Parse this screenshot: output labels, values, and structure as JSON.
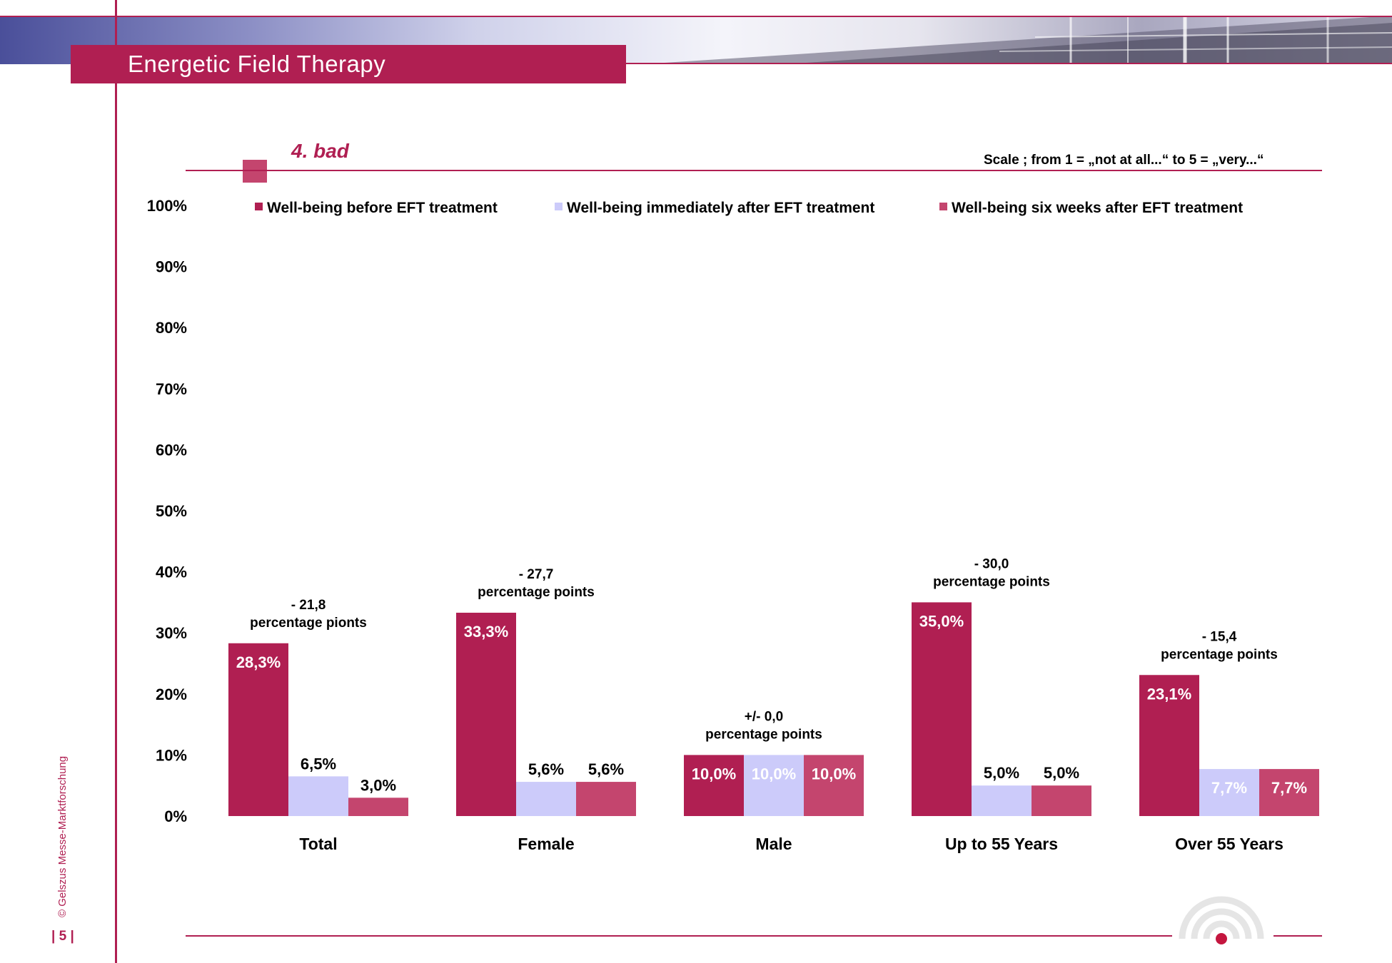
{
  "header": {
    "title": "Energetic Field Therapy"
  },
  "section": {
    "title": "4. bad",
    "scale_note": "Scale ; from 1 = „not at all...“  to 5 = „very...“"
  },
  "footer": {
    "copyright": "© Gelszus Messe-Marktforschung",
    "page_number": "| 5 |"
  },
  "colors": {
    "series1": "#b01f52",
    "series2": "#cccbfa",
    "series3": "#c4456e",
    "accent": "#b01f52"
  },
  "chart_data": {
    "type": "bar",
    "categories": [
      "Total",
      "Female",
      "Male",
      "Up to 55 Years",
      "Over 55 Years"
    ],
    "series": [
      {
        "name": "Well-being before EFT treatment",
        "values": [
          28.3,
          33.3,
          10.0,
          35.0,
          23.1
        ],
        "labels": [
          "28,3%",
          "33,3%",
          "10,0%",
          "35,0%",
          "23,1%"
        ]
      },
      {
        "name": "Well-being immediately after EFT treatment",
        "values": [
          6.5,
          5.6,
          10.0,
          5.0,
          7.7
        ],
        "labels": [
          "6,5%",
          "5,6%",
          "10,0%",
          "5,0%",
          "7,7%"
        ]
      },
      {
        "name": "Well-being six weeks after EFT treatment",
        "values": [
          3.0,
          5.6,
          10.0,
          5.0,
          7.7
        ],
        "labels": [
          "3,0%",
          "5,6%",
          "10,0%",
          "5,0%",
          "7,7%"
        ]
      }
    ],
    "annotations": [
      {
        "line1": "- 21,8",
        "line2": "percentage pionts"
      },
      {
        "line1": "- 27,7",
        "line2": "percentage points"
      },
      {
        "line1": "+/- 0,0",
        "line2": "percentage points"
      },
      {
        "line1": "- 30,0",
        "line2": "percentage points"
      },
      {
        "line1": "- 15,4",
        "line2": "percentage points"
      }
    ],
    "yticks": [
      "0%",
      "10%",
      "20%",
      "30%",
      "40%",
      "50%",
      "60%",
      "70%",
      "80%",
      "90%",
      "100%"
    ],
    "ylim": [
      0,
      100
    ],
    "grid": false,
    "legend_position": "top"
  }
}
